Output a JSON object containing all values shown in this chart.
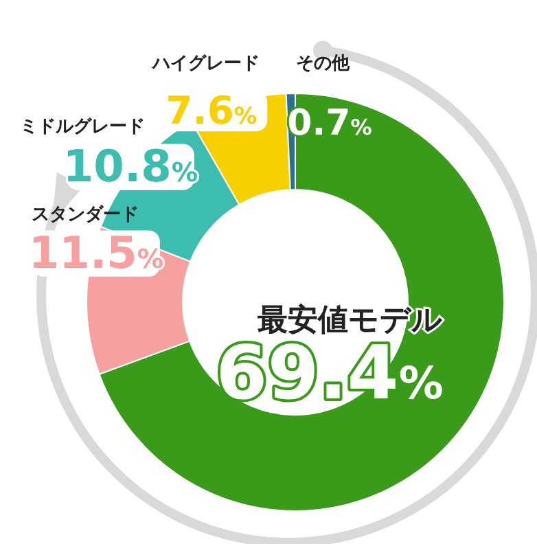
{
  "chart_data": {
    "type": "donut",
    "categories": [
      "最安値モデル",
      "スタンダード",
      "ミドルグレード",
      "ハイグレード",
      "その他"
    ],
    "values": [
      69.4,
      11.5,
      10.8,
      7.6,
      0.7
    ],
    "colors": [
      "#3a9a1a",
      "#f7a0a0",
      "#3dbcb0",
      "#f8d000",
      "#2d6f8f"
    ],
    "value_labels": [
      "69.4%",
      "11.5%",
      "10.8%",
      "7.6%",
      "0.7%"
    ],
    "legend": false
  }
}
